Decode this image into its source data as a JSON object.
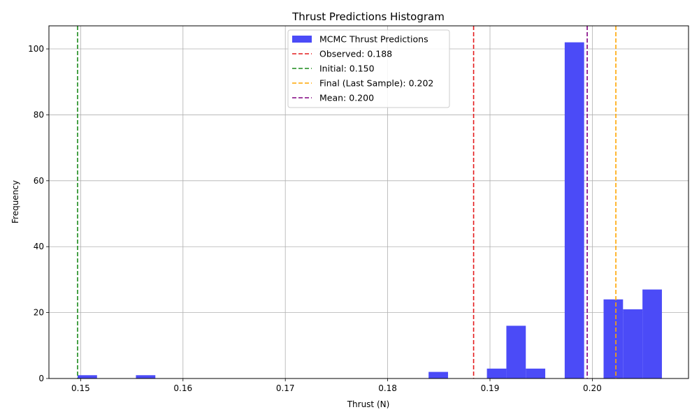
{
  "chart_data": {
    "type": "bar",
    "title": "Thrust Predictions Histogram",
    "xlabel": "Thrust (N)",
    "ylabel": "Frequency",
    "xlim": [
      0.1469,
      0.2094
    ],
    "ylim": [
      0,
      107
    ],
    "x_ticks": [
      0.15,
      0.16,
      0.17,
      0.18,
      0.19,
      0.2
    ],
    "x_tick_labels": [
      "0.15",
      "0.16",
      "0.17",
      "0.18",
      "0.19",
      "0.20"
    ],
    "y_ticks": [
      0,
      20,
      40,
      60,
      80,
      100
    ],
    "y_tick_labels": [
      "0",
      "20",
      "40",
      "60",
      "80",
      "100"
    ],
    "grid": true,
    "legend_position": "top-center",
    "bar_color": "#4b4bf7",
    "series": [
      {
        "name": "MCMC Thrust Predictions",
        "bins": [
          {
            "x0": 0.1497,
            "x1": 0.1516,
            "count": 1
          },
          {
            "x0": 0.1554,
            "x1": 0.1573,
            "count": 1
          },
          {
            "x0": 0.184,
            "x1": 0.1859,
            "count": 2
          },
          {
            "x0": 0.1897,
            "x1": 0.1916,
            "count": 3
          },
          {
            "x0": 0.1916,
            "x1": 0.1935,
            "count": 16
          },
          {
            "x0": 0.1935,
            "x1": 0.1954,
            "count": 3
          },
          {
            "x0": 0.1973,
            "x1": 0.1992,
            "count": 102
          },
          {
            "x0": 0.2011,
            "x1": 0.203,
            "count": 24
          },
          {
            "x0": 0.203,
            "x1": 0.2049,
            "count": 21
          },
          {
            "x0": 0.2049,
            "x1": 0.2068,
            "count": 27
          }
        ]
      }
    ],
    "vlines": [
      {
        "label": "Observed: 0.188",
        "x": 0.1884,
        "color": "#e41a1c"
      },
      {
        "label": "Initial: 0.150",
        "x": 0.1497,
        "color": "#1a8a1a"
      },
      {
        "label": "Final (Last Sample): 0.202",
        "x": 0.2023,
        "color": "#ffa500"
      },
      {
        "label": "Mean: 0.200",
        "x": 0.1995,
        "color": "#800080"
      }
    ]
  }
}
